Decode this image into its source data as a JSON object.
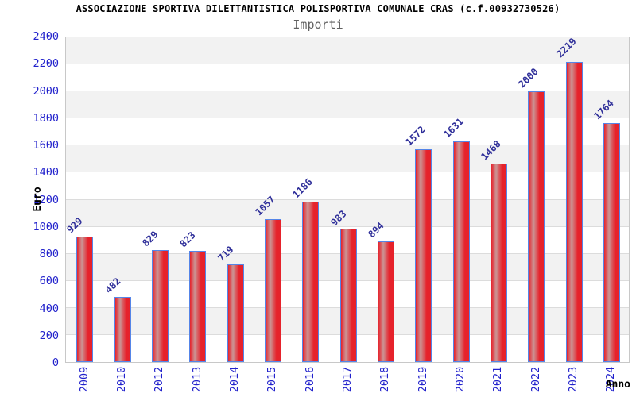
{
  "chart_data": {
    "type": "bar",
    "title": "ASSOCIAZIONE SPORTIVA DILETTANTISTICA POLISPORTIVA COMUNALE CRAS (c.f.00932730526)",
    "subtitle": "Importi",
    "xlabel": "Anno",
    "ylabel": "Euro",
    "categories": [
      "2009",
      "2010",
      "2012",
      "2013",
      "2014",
      "2015",
      "2016",
      "2017",
      "2018",
      "2019",
      "2020",
      "2021",
      "2022",
      "2023",
      "2024"
    ],
    "values": [
      929,
      482,
      829,
      823,
      719,
      1057,
      1186,
      983,
      894,
      1572,
      1631,
      1468,
      2000,
      2219,
      1764
    ],
    "ylim": [
      0,
      2400
    ],
    "ytick_step": 200,
    "grid": "horizontal",
    "bands": "alternating-gray",
    "legend": "none"
  },
  "colors": {
    "title": "#000000",
    "subtitle": "#606060",
    "axis_tick_label": "#2222cc",
    "value_label": "#30309a",
    "axis_title": "#000000",
    "bar_fill_main": "#e6222b",
    "bar_fill_light": "#cb9595",
    "bar_border": "#5585e8",
    "band_gray": "#f2f2f2",
    "gridline": "#dcdcdc",
    "plot_border": "#c8c8c8",
    "background": "#ffffff"
  }
}
